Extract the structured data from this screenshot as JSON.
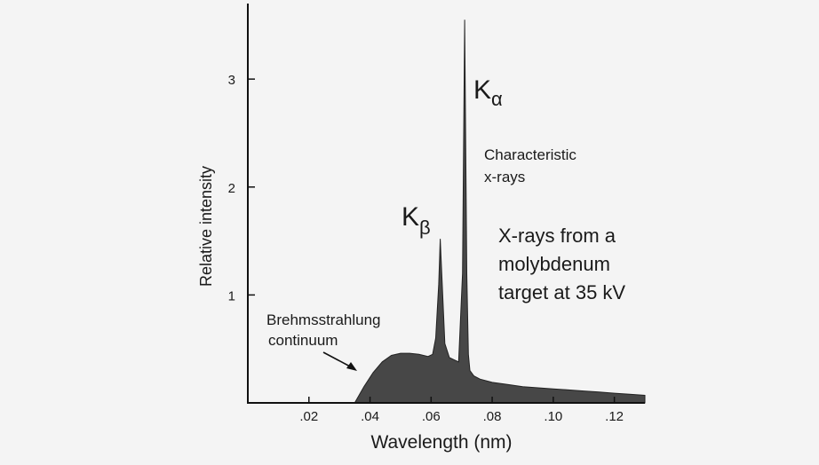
{
  "chart_data": {
    "type": "area",
    "xlabel": "Wavelength (nm)",
    "ylabel": "Relative intensity",
    "xlim": [
      0.0,
      0.13
    ],
    "ylim": [
      0,
      3.7
    ],
    "x_ticks": [
      0.02,
      0.04,
      0.06,
      0.08,
      0.1,
      0.12
    ],
    "x_tick_labels": [
      ".02",
      ".04",
      ".06",
      ".08",
      ".10",
      ".12"
    ],
    "y_ticks": [
      1,
      2,
      3
    ],
    "y_tick_labels": [
      "1",
      "2",
      "3"
    ],
    "fill_color": "#474747",
    "series": [
      {
        "x": [
          0.035,
          0.038,
          0.041,
          0.044,
          0.047,
          0.05,
          0.053,
          0.056,
          0.059,
          0.0605,
          0.0615,
          0.0625,
          0.063,
          0.0635,
          0.0645,
          0.066,
          0.0675,
          0.069,
          0.0703,
          0.071,
          0.0717,
          0.0722,
          0.0727,
          0.074,
          0.076,
          0.08,
          0.085,
          0.09,
          0.095,
          0.1,
          0.105,
          0.11,
          0.115,
          0.12,
          0.125,
          0.13
        ],
        "y": [
          0.0,
          0.15,
          0.28,
          0.38,
          0.44,
          0.46,
          0.46,
          0.45,
          0.43,
          0.45,
          0.6,
          1.1,
          1.52,
          1.2,
          0.55,
          0.42,
          0.4,
          0.38,
          1.2,
          3.55,
          1.2,
          0.45,
          0.3,
          0.25,
          0.22,
          0.19,
          0.17,
          0.15,
          0.14,
          0.13,
          0.12,
          0.11,
          0.1,
          0.09,
          0.08,
          0.07
        ]
      }
    ],
    "annotations": {
      "k_alpha": {
        "main": "K",
        "sub": "α",
        "x": 0.0703,
        "y": 3.55
      },
      "k_beta": {
        "main": "K",
        "sub": "β",
        "x": 0.063,
        "y": 1.52
      },
      "characteristic": [
        "Characteristic",
        "x-rays"
      ],
      "brehmsstrahlung": [
        "Brehmsstrahlung",
        "continuum"
      ],
      "description": [
        "X-rays from a",
        "molybdenum",
        "target at 35 kV"
      ]
    },
    "grid": false,
    "legend": "none"
  }
}
